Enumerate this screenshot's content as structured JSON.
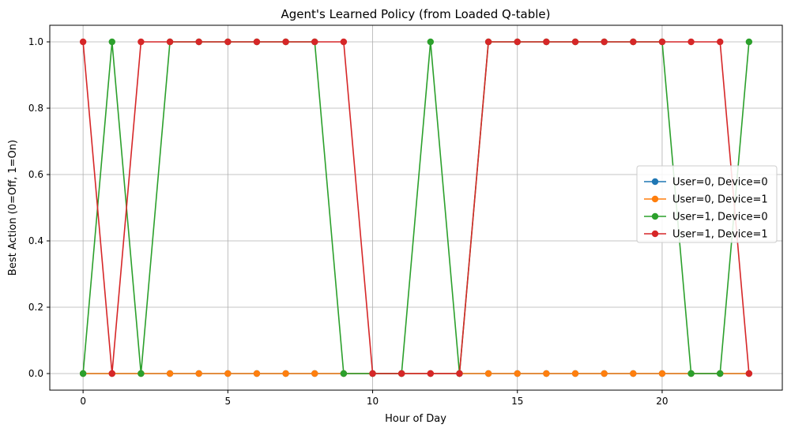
{
  "chart_data": {
    "type": "line",
    "title": "Agent's Learned Policy (from Loaded Q-table)",
    "xlabel": "Hour of Day",
    "ylabel": "Best Action (0=Off, 1=On)",
    "x": [
      0,
      1,
      2,
      3,
      4,
      5,
      6,
      7,
      8,
      9,
      10,
      11,
      12,
      13,
      14,
      15,
      16,
      17,
      18,
      19,
      20,
      21,
      22,
      23
    ],
    "xlim": [
      -1.15,
      24.15
    ],
    "ylim": [
      -0.05,
      1.05
    ],
    "xticks": [
      0,
      5,
      10,
      15,
      20
    ],
    "xtick_labels": [
      "0",
      "5",
      "10",
      "15",
      "20"
    ],
    "yticks": [
      0.0,
      0.2,
      0.4,
      0.6,
      0.8,
      1.0
    ],
    "ytick_labels": [
      "0.0",
      "0.2",
      "0.4",
      "0.6",
      "0.8",
      "1.0"
    ],
    "grid": true,
    "legend_position": "center-right",
    "series": [
      {
        "name": "User=0, Device=0",
        "color": "#1f77b4",
        "values": [
          0,
          0,
          0,
          0,
          0,
          0,
          0,
          0,
          0,
          0,
          0,
          0,
          0,
          0,
          0,
          0,
          0,
          0,
          0,
          0,
          0,
          0,
          0,
          0
        ]
      },
      {
        "name": "User=0, Device=1",
        "color": "#ff7f0e",
        "values": [
          0,
          0,
          0,
          0,
          0,
          0,
          0,
          0,
          0,
          0,
          0,
          0,
          0,
          0,
          0,
          0,
          0,
          0,
          0,
          0,
          0,
          0,
          0,
          0
        ]
      },
      {
        "name": "User=1, Device=0",
        "color": "#2ca02c",
        "values": [
          0,
          1,
          0,
          1,
          1,
          1,
          1,
          1,
          1,
          0,
          0,
          0,
          1,
          0,
          1,
          1,
          1,
          1,
          1,
          1,
          1,
          0,
          0,
          1
        ]
      },
      {
        "name": "User=1, Device=1",
        "color": "#d62728",
        "values": [
          1,
          0,
          1,
          1,
          1,
          1,
          1,
          1,
          1,
          1,
          0,
          0,
          0,
          0,
          1,
          1,
          1,
          1,
          1,
          1,
          1,
          1,
          1,
          0
        ]
      }
    ]
  }
}
